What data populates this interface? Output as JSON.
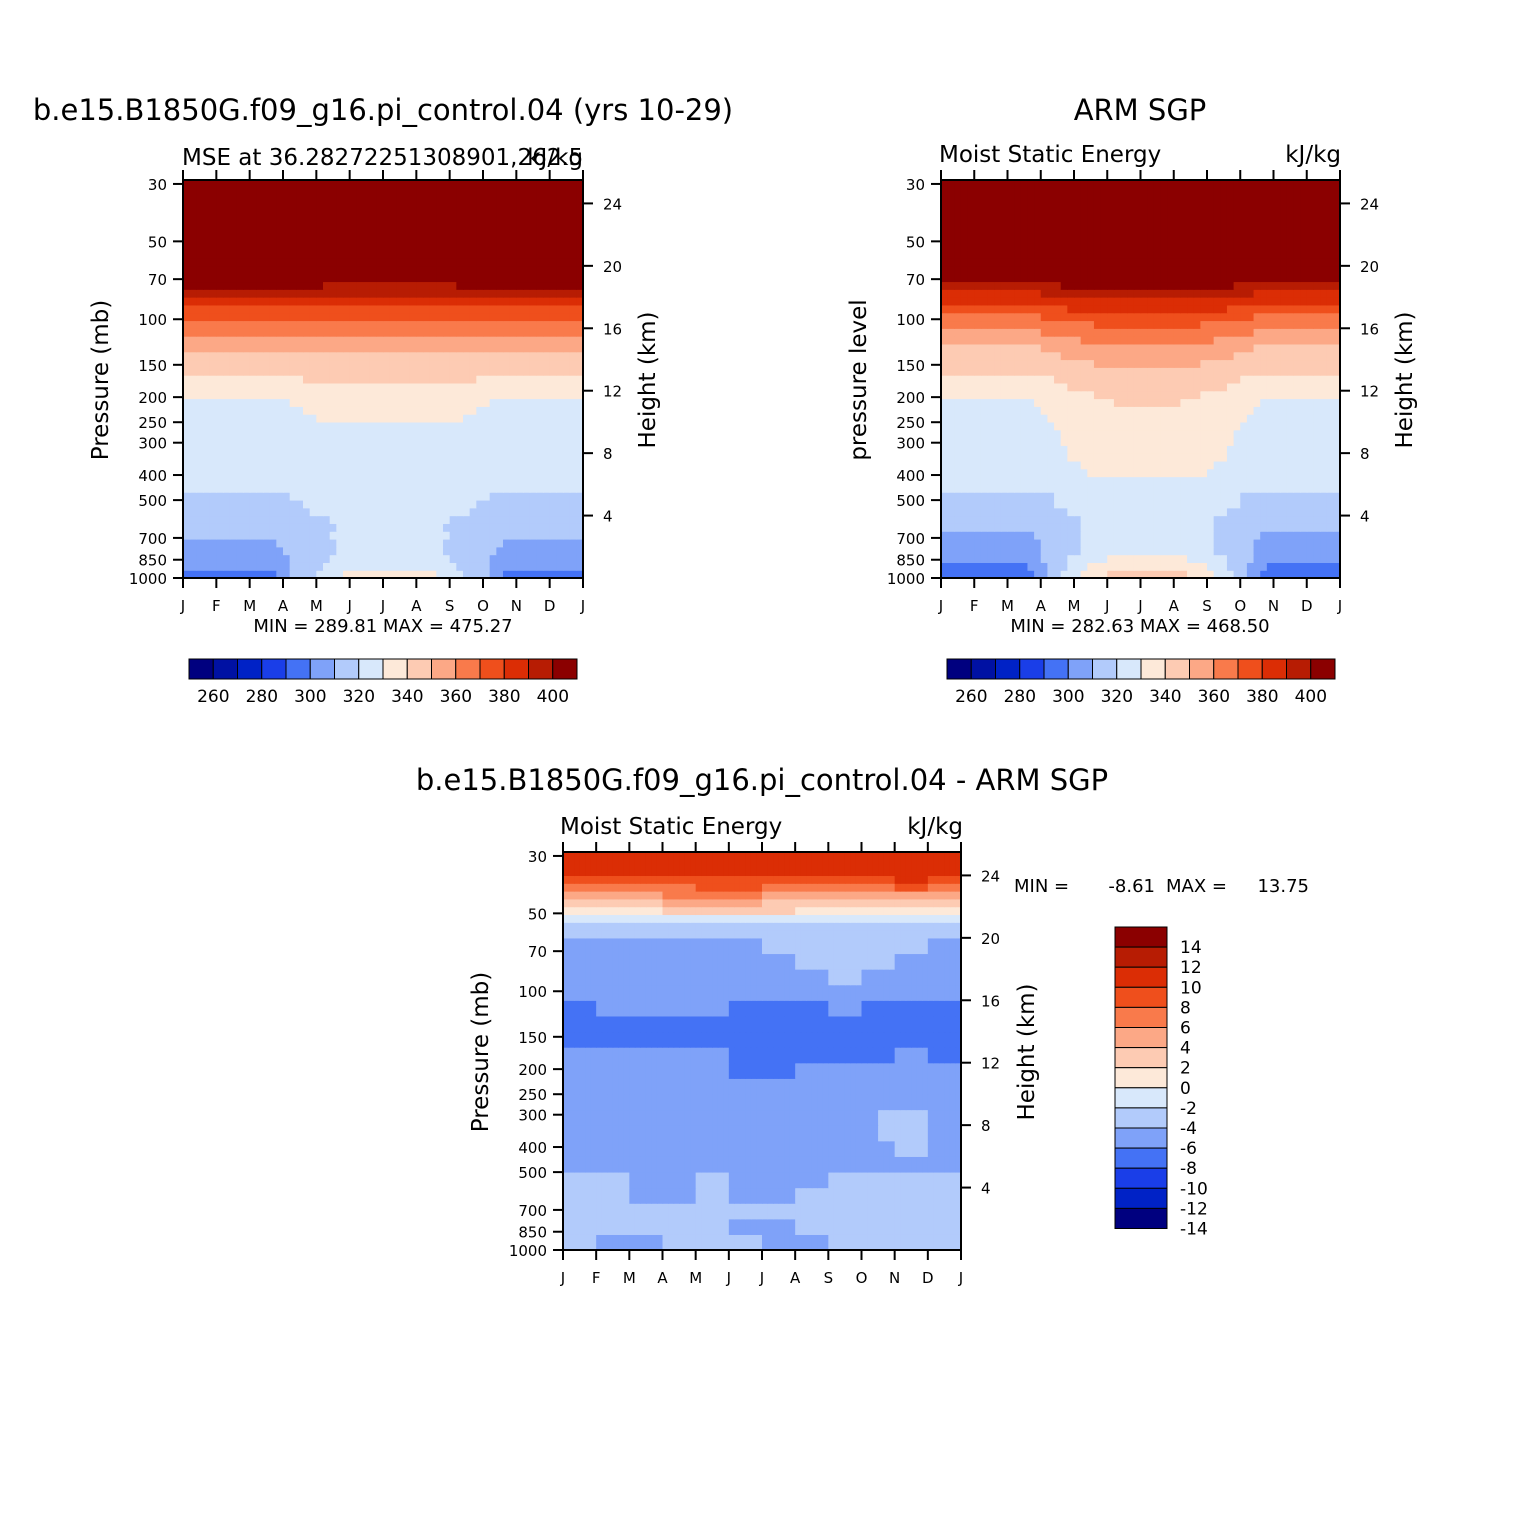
{
  "chart_data": [
    {
      "type": "heatmap",
      "id": "model",
      "title": "b.e15.B1850G.f09_g16.pi_control.04 (yrs 10-29)",
      "subtitle_left": "MSE at 36.28272251308901,262.5",
      "subtitle_right": "kJ/kg",
      "ylabel": "Pressure (mb)",
      "ylabel_right": "Height (km)",
      "x_labels": [
        "J",
        "F",
        "M",
        "A",
        "M",
        "J",
        "J",
        "A",
        "S",
        "O",
        "N",
        "D",
        "J"
      ],
      "pressure_levels": [
        1000,
        850,
        700,
        500,
        400,
        300,
        250,
        200,
        150,
        100,
        70,
        50,
        30
      ],
      "height_ticks": [
        4,
        8,
        12,
        16,
        20,
        24
      ],
      "min_max": "MIN = 289.81 MAX = 475.27",
      "colorbar_labels": [
        "260",
        "280",
        "300",
        "320",
        "340",
        "360",
        "380",
        "400"
      ],
      "levels": [
        250,
        260,
        270,
        280,
        290,
        300,
        310,
        320,
        330,
        340,
        350,
        360,
        370,
        380,
        390,
        400
      ],
      "field": {
        "layer_bottoms_km": [
          0,
          0.5,
          1,
          1.5,
          2,
          2.5,
          3,
          3.5,
          4,
          4.5,
          5,
          5.5,
          6,
          6.5,
          7,
          7.5,
          8,
          8.5,
          9,
          9.5,
          10,
          10.5,
          11,
          11.5,
          12,
          12.5,
          13,
          13.5,
          14,
          14.5,
          15,
          15.5,
          16,
          16.5,
          17,
          17.5,
          18,
          18.5,
          19,
          19.5,
          20,
          20.5,
          21
        ],
        "coastal_profile": [
          296,
          301,
          304,
          306,
          308,
          310,
          312,
          314,
          316,
          318,
          319,
          320,
          320,
          322,
          323,
          324,
          324,
          325,
          325,
          326,
          327,
          327,
          328,
          330,
          332,
          338,
          340,
          344,
          346,
          350,
          355,
          360,
          366,
          371,
          378,
          384,
          392,
          405,
          415,
          425,
          435,
          445,
          455
        ],
        "summer_profile": [
          336,
          329,
          325,
          324,
          323,
          323,
          322,
          322,
          323,
          322,
          322,
          322,
          322,
          322,
          322,
          323,
          324,
          325,
          327,
          330,
          332,
          333,
          335,
          336,
          338,
          342,
          343,
          346,
          350,
          354,
          358,
          362,
          366,
          372,
          378,
          385,
          390,
          398,
          410,
          420,
          430,
          440,
          450
        ]
      }
    },
    {
      "type": "heatmap",
      "id": "obs",
      "title": "ARM SGP",
      "subtitle_left": "Moist Static Energy",
      "subtitle_right": "kJ/kg",
      "ylabel": "pressure level",
      "ylabel_right": "Height (km)",
      "x_labels": [
        "J",
        "F",
        "M",
        "A",
        "M",
        "J",
        "J",
        "A",
        "S",
        "O",
        "N",
        "D",
        "J"
      ],
      "pressure_levels": [
        1000,
        850,
        700,
        500,
        400,
        300,
        250,
        200,
        150,
        100,
        70,
        50,
        30
      ],
      "height_ticks": [
        4,
        8,
        12,
        16,
        20,
        24
      ],
      "min_max": "MIN = 282.63 MAX = 468.50",
      "colorbar_labels": [
        "260",
        "280",
        "300",
        "320",
        "340",
        "360",
        "380",
        "400"
      ],
      "levels": [
        250,
        260,
        270,
        280,
        290,
        300,
        310,
        320,
        330,
        340,
        350,
        360,
        370,
        380,
        390,
        400
      ],
      "field": {
        "layer_bottoms_km": [
          0,
          0.5,
          1,
          1.5,
          2,
          2.5,
          3,
          3.5,
          4,
          4.5,
          5,
          5.5,
          6,
          6.5,
          7,
          7.5,
          8,
          8.5,
          9,
          9.5,
          10,
          10.5,
          11,
          11.5,
          12,
          12.5,
          13,
          13.5,
          14,
          14.5,
          15,
          15.5,
          16,
          16.5,
          17,
          17.5,
          18,
          18.5,
          19,
          19.5,
          20,
          20.5,
          21
        ],
        "coastal_profile": [
          295,
          299,
          302,
          304,
          306,
          308,
          310,
          313,
          315,
          317,
          318,
          320,
          320,
          321,
          322,
          323,
          324,
          325,
          325,
          326,
          327,
          328,
          329,
          331,
          333,
          336,
          341,
          343,
          345,
          348,
          353,
          358,
          363,
          368,
          375,
          382,
          388,
          395,
          410,
          420,
          430,
          440,
          450
        ],
        "summer_profile": [
          345,
          339,
          334,
          328,
          326,
          325,
          324,
          323,
          324,
          324,
          323,
          325,
          330,
          333,
          334,
          335,
          335,
          336,
          336,
          337,
          338,
          339,
          341,
          342,
          345,
          347,
          349,
          352,
          356,
          360,
          363,
          368,
          372,
          378,
          384,
          390,
          398,
          405,
          415,
          425,
          435,
          445,
          455
        ]
      }
    },
    {
      "type": "heatmap",
      "id": "diff",
      "title": "b.e15.B1850G.f09_g16.pi_control.04 - ARM SGP",
      "subtitle_left": "Moist Static Energy",
      "subtitle_right": "kJ/kg",
      "ylabel": "Pressure (mb)",
      "ylabel_right": "Height (km)",
      "x_labels": [
        "J",
        "F",
        "M",
        "A",
        "M",
        "J",
        "J",
        "A",
        "S",
        "O",
        "N",
        "D",
        "J"
      ],
      "pressure_levels": [
        1000,
        850,
        700,
        500,
        400,
        300,
        250,
        200,
        150,
        100,
        70,
        50,
        30
      ],
      "height_ticks": [
        4,
        8,
        12,
        16,
        20,
        24
      ],
      "min_label": "MIN =",
      "min_value": "-8.61",
      "max_label": "MAX =",
      "max_value": "13.75",
      "colorbar_labels": [
        "14",
        "12",
        "10",
        "8",
        "6",
        "4",
        "2",
        "0",
        "-2",
        "-4",
        "-6",
        "-8",
        "-10",
        "-12",
        "-14"
      ],
      "levels": [
        -14,
        -12,
        -10,
        -8,
        -6,
        -4,
        -2,
        0,
        2,
        4,
        6,
        8,
        10,
        12,
        14
      ],
      "field": {
        "layer_bottoms_km": [
          0,
          1,
          2,
          3,
          4,
          5,
          6,
          7,
          8,
          9,
          10,
          11,
          12,
          13,
          14,
          15,
          16,
          17,
          18,
          19,
          20,
          20.5,
          21,
          21.5,
          22,
          22.5,
          23,
          23.5,
          24
        ],
        "rows": [
          [
            -4,
            -4,
            -5,
            -4,
            -4,
            -4,
            -4,
            -5,
            -4,
            -4,
            -3,
            -4,
            -4
          ],
          [
            -3,
            -3,
            -4,
            -4,
            -3,
            -4,
            -5,
            -4,
            -3,
            -4,
            -3,
            -3,
            -3
          ],
          [
            -3,
            -3,
            -4,
            -4,
            -3,
            -4,
            -4,
            -4,
            -3,
            -4,
            -3,
            -3,
            -3
          ],
          [
            -4,
            -3,
            -4,
            -5,
            -4,
            -4,
            -5,
            -4,
            -3,
            -4,
            -3,
            -3,
            -4
          ],
          [
            -4,
            -4,
            -4,
            -5,
            -4,
            -4,
            -5,
            -5,
            -4,
            -4,
            -4,
            -4,
            -4
          ],
          [
            -5,
            -5,
            -5,
            -5,
            -5,
            -5,
            -5,
            -5,
            -5,
            -5,
            -4,
            -5,
            -5
          ],
          [
            -5,
            -5,
            -5,
            -5,
            -5,
            -5,
            -5,
            -5,
            -5,
            -5,
            -4,
            -4,
            -5
          ],
          [
            -5,
            -5,
            -5,
            -6,
            -5,
            -5,
            -5,
            -5,
            -5,
            -5,
            -3,
            -4,
            -5
          ],
          [
            -5,
            -5,
            -5,
            -5,
            -5,
            -5,
            -5,
            -5,
            -5,
            -5,
            -3,
            -4,
            -5
          ],
          [
            -5,
            -5,
            -5,
            -5,
            -5,
            -5,
            -5,
            -5,
            -5,
            -5,
            -4,
            -5,
            -5
          ],
          [
            -5,
            -5,
            -5,
            -5,
            -5,
            -6,
            -6,
            -6,
            -6,
            -5,
            -5,
            -5,
            -5
          ],
          [
            -6,
            -6,
            -5,
            -5,
            -5,
            -6,
            -7,
            -6,
            -6,
            -6,
            -6,
            -6,
            -6
          ],
          [
            -6,
            -6,
            -6,
            -6,
            -6,
            -6,
            -7,
            -7,
            -7,
            -7,
            -6,
            -6,
            -7
          ],
          [
            -7,
            -7,
            -7,
            -7,
            -7,
            -7,
            -7,
            -7,
            -7,
            -7,
            -7,
            -7,
            -7
          ],
          [
            -7,
            -7,
            -7,
            -7,
            -7,
            -7,
            -7,
            -7,
            -7,
            -7,
            -7,
            -7,
            -7
          ],
          [
            -7,
            -6,
            -6,
            -6,
            -6,
            -6,
            -7,
            -7,
            -6,
            -6,
            -7,
            -7,
            -7
          ],
          [
            -6,
            -6,
            -5,
            -5,
            -5,
            -5,
            -6,
            -6,
            -5,
            -5,
            -6,
            -6,
            -6
          ],
          [
            -5,
            -5,
            -5,
            -5,
            -5,
            -5,
            -5,
            -5,
            -4,
            -4,
            -5,
            -5,
            -5
          ],
          [
            -5,
            -5,
            -5,
            -5,
            -5,
            -5,
            -5,
            -4,
            -3,
            -3,
            -4,
            -5,
            -5
          ],
          [
            -5,
            -5,
            -5,
            -5,
            -5,
            -5,
            -4,
            -4,
            -3,
            -3,
            -4,
            -4,
            -5
          ],
          [
            -4,
            -4,
            -4,
            -4,
            -4,
            -4,
            -4,
            -4,
            -3,
            -3,
            -3,
            -4,
            -4
          ],
          [
            -3,
            -3,
            -3,
            -3,
            -3,
            -3,
            -3,
            -3,
            -3,
            -3,
            -3,
            -3,
            -3
          ],
          [
            -1,
            -1,
            -1,
            -1,
            -1,
            -1,
            -1,
            -1,
            -1,
            -1,
            -1,
            -1,
            -1
          ],
          [
            1,
            1,
            1,
            2,
            2,
            2,
            2,
            2,
            1,
            1,
            1,
            1,
            1
          ],
          [
            3,
            3,
            3,
            4,
            4,
            4,
            4,
            3,
            3,
            3,
            3,
            3,
            3
          ],
          [
            5,
            5,
            5,
            6,
            6,
            6,
            6,
            5,
            5,
            5,
            5,
            5,
            5
          ],
          [
            7,
            7,
            6,
            7,
            8,
            8,
            8,
            7,
            6,
            7,
            8,
            8,
            7
          ],
          [
            9,
            9,
            8,
            8,
            9,
            9,
            9,
            9,
            8,
            9,
            10,
            10,
            9
          ],
          [
            11,
            11,
            10,
            10,
            10,
            10,
            10,
            11,
            10,
            11,
            11,
            11,
            11
          ]
        ]
      }
    }
  ],
  "colors": {
    "model_palette": [
      "#00007f",
      "#0011a3",
      "#0022c6",
      "#1a3ee8",
      "#4472f5",
      "#7fa2f9",
      "#b2cbfb",
      "#d8e8fb",
      "#fde9d9",
      "#fdcbb3",
      "#fca886",
      "#f97a4b",
      "#ef4f1c",
      "#db2d05",
      "#b71c03",
      "#8b0000"
    ],
    "diff_palette": [
      "#00007f",
      "#0022c6",
      "#1a3ee8",
      "#4472f5",
      "#7fa2f9",
      "#b2cbfb",
      "#d8e8fb",
      "#fde9d9",
      "#fdcbb3",
      "#fca886",
      "#f97a4b",
      "#ef4f1c",
      "#db2d05",
      "#b71c03",
      "#8b0000"
    ]
  }
}
